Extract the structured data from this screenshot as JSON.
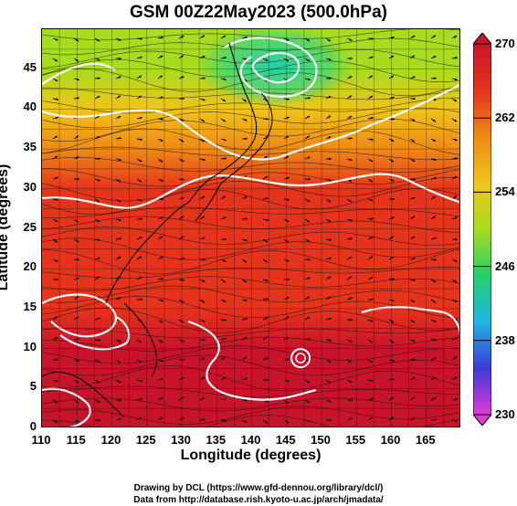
{
  "title": "GSM 00Z22May2023 (500.0hPa)",
  "chart_data": {
    "type": "heatmap",
    "title": "GSM 00Z22May2023 (500.0hPa)",
    "xlabel": "Longitude (degrees)",
    "ylabel": "Latitude  (degrees)",
    "xlim": [
      110,
      170
    ],
    "ylim": [
      0,
      50
    ],
    "xticks": [
      "110",
      "115",
      "120",
      "125",
      "130",
      "135",
      "140",
      "145",
      "150",
      "155",
      "160",
      "165"
    ],
    "yticks": [
      "0",
      "5",
      "10",
      "15",
      "20",
      "25",
      "30",
      "35",
      "40",
      "45"
    ],
    "grid": true,
    "colorbar": {
      "min": 230,
      "max": 270,
      "ticks": [
        "270",
        "262",
        "254",
        "246",
        "238",
        "230"
      ],
      "colors": [
        "#e23ad6",
        "#3b3bd6",
        "#1fb3e6",
        "#25d06a",
        "#a8dc1e",
        "#f0c418",
        "#ef8a14",
        "#e6331c",
        "#c8142a"
      ]
    },
    "temperature_profile": [
      {
        "lat": 50,
        "value": 250
      },
      {
        "lat": 45,
        "value": 251
      },
      {
        "lat": 40,
        "value": 256
      },
      {
        "lat": 35,
        "value": 262
      },
      {
        "lat": 30,
        "value": 264
      },
      {
        "lat": 25,
        "value": 265
      },
      {
        "lat": 20,
        "value": 266
      },
      {
        "lat": 15,
        "value": 267
      },
      {
        "lat": 10,
        "value": 268
      },
      {
        "lat": 0,
        "value": 268
      }
    ],
    "features": [
      {
        "kind": "cold-low",
        "lon": 143.5,
        "lat": 47.5
      },
      {
        "kind": "tropical-cyclone",
        "lon": 147,
        "lat": 8.8
      }
    ]
  },
  "footer": {
    "line1": "Drawing by DCL (https://www.gfd-dennou.org/library/dcl/)",
    "line2": "Data from http://database.rish.kyoto-u.ac.jp/arch/jmadata/"
  }
}
